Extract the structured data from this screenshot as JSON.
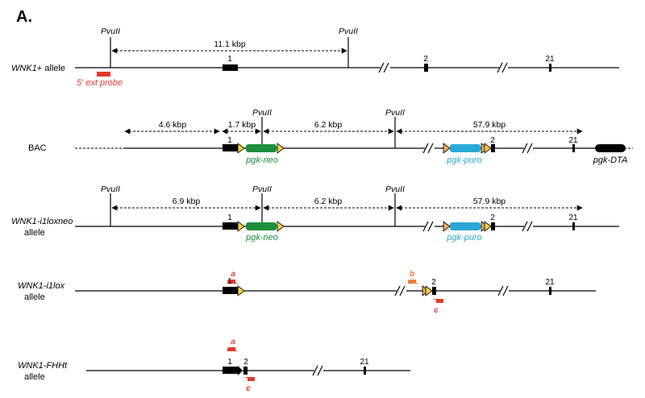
{
  "panel_label": "A.",
  "site_label": "PvuII",
  "colors": {
    "probe": "#e03a2f",
    "neo": "#1e8f3a",
    "puro": "#29a9d6",
    "primer_a": "#e03a2f",
    "primer_b": "#ef7b3a",
    "loxp": "#f2d04a",
    "frt": "#f0a860"
  },
  "rows": {
    "wt": {
      "label_name": "WNK1",
      "label_suffix": "+ allele",
      "probe_label": "5' ext probe",
      "distance": "11.1 kbp",
      "exons": [
        "1",
        "2",
        "21"
      ]
    },
    "bac": {
      "label": "BAC",
      "distances": [
        "4.6 kbp",
        "1.7 kbp",
        "6.2 kbp",
        "57.9 kbp"
      ],
      "exons": [
        "1",
        "2",
        "21"
      ],
      "neo_label": "pgk-neo",
      "puro_label": "pgk-puro",
      "dta_label": "pgk-DTA"
    },
    "i1loxneo": {
      "label_line1": "WNK1-i1loxneo",
      "label_line2": "allele",
      "distances": [
        "6.9 kbp",
        "6.2 kbp",
        "57.9 kbp"
      ],
      "exons": [
        "1",
        "2",
        "21"
      ],
      "neo_label": "pgk-neo",
      "puro_label": "pgk-puro"
    },
    "i1lox": {
      "label_line1": "WNK1-i1lox",
      "label_line2": "allele",
      "exons": [
        "1",
        "2",
        "21"
      ],
      "primers": [
        "a",
        "b",
        "c"
      ]
    },
    "fhht": {
      "label_line1": "WNK1-FHHt",
      "label_line2": "allele",
      "exons": [
        "1",
        "2",
        "21"
      ],
      "primers": [
        "a",
        "c"
      ]
    }
  }
}
